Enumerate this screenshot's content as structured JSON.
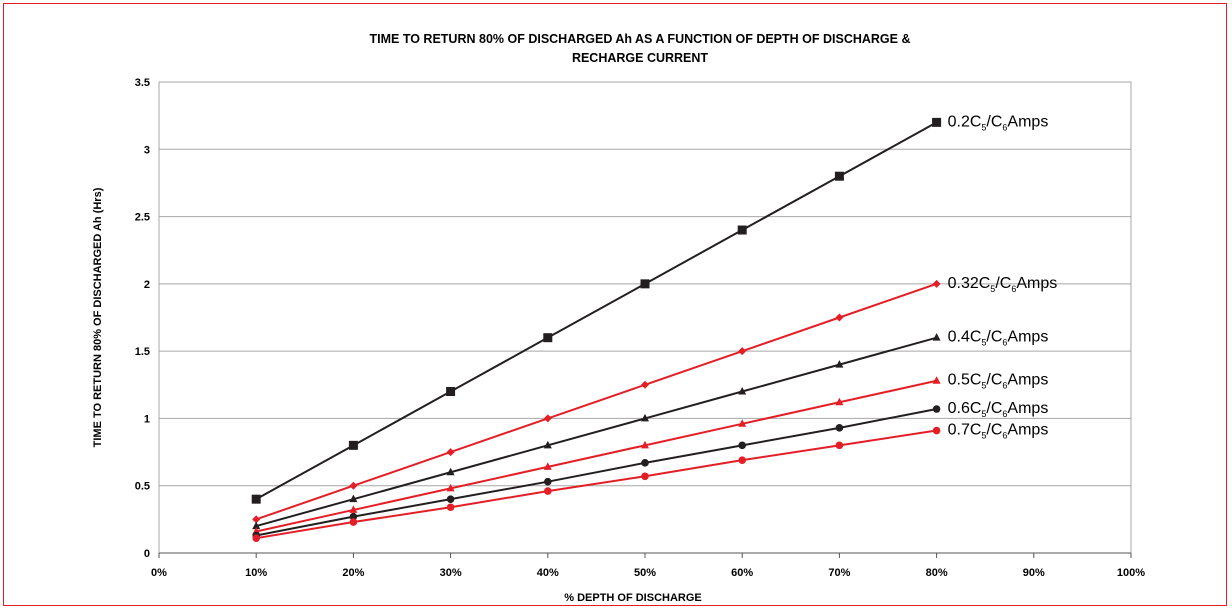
{
  "chart_data": {
    "type": "line",
    "title": "TIME TO RETURN 80% OF DISCHARGED Ah AS A FUNCTION OF DEPTH OF DISCHARGE &\nRECHARGE CURRENT",
    "xlabel": "% DEPTH OF DISCHARGE",
    "ylabel": "TIME TO RETURN 80% OF DISCHARGED Ah (Hrs)",
    "xlim": [
      0,
      100
    ],
    "ylim": [
      0,
      3.5
    ],
    "x_ticks": [
      "0%",
      "10%",
      "20%",
      "30%",
      "40%",
      "50%",
      "60%",
      "70%",
      "80%",
      "90%",
      "100%"
    ],
    "y_ticks": [
      "0",
      "0.5",
      "1",
      "1.5",
      "2",
      "2.5",
      "3",
      "3.5"
    ],
    "grid": "horizontal",
    "x": [
      10,
      20,
      30,
      40,
      50,
      60,
      70,
      80
    ],
    "series": [
      {
        "name": "0.2C5/C6Amps",
        "label_parts": [
          "0.2C",
          "5",
          "/C",
          "6",
          "Amps"
        ],
        "color": "#231f20",
        "marker": "square",
        "values": [
          0.4,
          0.8,
          1.2,
          1.6,
          2.0,
          2.4,
          2.8,
          3.2
        ]
      },
      {
        "name": "0.32C5/C6Amps",
        "label_parts": [
          "0.32C",
          "5",
          "/C",
          "6",
          "Amps"
        ],
        "color": "#e41e26",
        "marker": "diamond",
        "values": [
          0.25,
          0.5,
          0.75,
          1.0,
          1.25,
          1.5,
          1.75,
          2.0
        ]
      },
      {
        "name": "0.4C5/C6Amps",
        "label_parts": [
          "0.4C",
          "5",
          "/C",
          "6",
          "Amps"
        ],
        "color": "#231f20",
        "marker": "triangle",
        "values": [
          0.2,
          0.4,
          0.6,
          0.8,
          1.0,
          1.2,
          1.4,
          1.6
        ]
      },
      {
        "name": "0.5C5/C6Amps",
        "label_parts": [
          "0.5C",
          "5",
          "/C",
          "6",
          "Amps"
        ],
        "color": "#e41e26",
        "marker": "triangle",
        "values": [
          0.16,
          0.32,
          0.48,
          0.64,
          0.8,
          0.96,
          1.12,
          1.28
        ]
      },
      {
        "name": "0.6C5/C6Amps",
        "label_parts": [
          "0.6C",
          "5",
          "/C",
          "6",
          "Amps"
        ],
        "color": "#231f20",
        "marker": "circle",
        "values": [
          0.13,
          0.27,
          0.4,
          0.53,
          0.67,
          0.8,
          0.93,
          1.07
        ]
      },
      {
        "name": "0.7C5/C6Amps",
        "label_parts": [
          "0.7C",
          "5",
          "/C",
          "6",
          "Amps"
        ],
        "color": "#e41e26",
        "marker": "circle",
        "values": [
          0.11,
          0.23,
          0.34,
          0.46,
          0.57,
          0.69,
          0.8,
          0.91
        ]
      }
    ]
  }
}
